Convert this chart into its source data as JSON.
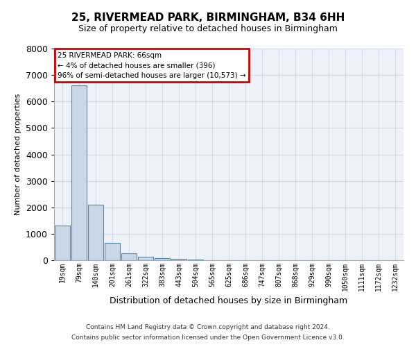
{
  "title1": "25, RIVERMEAD PARK, BIRMINGHAM, B34 6HH",
  "title2": "Size of property relative to detached houses in Birmingham",
  "xlabel": "Distribution of detached houses by size in Birmingham",
  "ylabel": "Number of detached properties",
  "categories": [
    "19sqm",
    "79sqm",
    "140sqm",
    "201sqm",
    "261sqm",
    "322sqm",
    "383sqm",
    "443sqm",
    "504sqm",
    "565sqm",
    "625sqm",
    "686sqm",
    "747sqm",
    "807sqm",
    "868sqm",
    "929sqm",
    "990sqm",
    "1050sqm",
    "1111sqm",
    "1172sqm",
    "1232sqm"
  ],
  "values": [
    1300,
    6600,
    2100,
    650,
    250,
    120,
    80,
    60,
    15,
    5,
    3,
    2,
    1,
    1,
    0,
    0,
    0,
    0,
    0,
    0,
    0
  ],
  "bar_color": "#c8d8e8",
  "bar_edge_color": "#5588aa",
  "grid_color": "#d0d8e8",
  "background_color": "#eef2f8",
  "ylim": [
    0,
    8000
  ],
  "annotation_text": "25 RIVERMEAD PARK: 66sqm\n← 4% of detached houses are smaller (396)\n96% of semi-detached houses are larger (10,573) →",
  "annotation_box_color": "#cc0000",
  "footnote1": "Contains HM Land Registry data © Crown copyright and database right 2024.",
  "footnote2": "Contains public sector information licensed under the Open Government Licence v3.0.",
  "title_fontsize": 11,
  "subtitle_fontsize": 9,
  "tick_fontsize": 7,
  "ylabel_fontsize": 8,
  "xlabel_fontsize": 9
}
